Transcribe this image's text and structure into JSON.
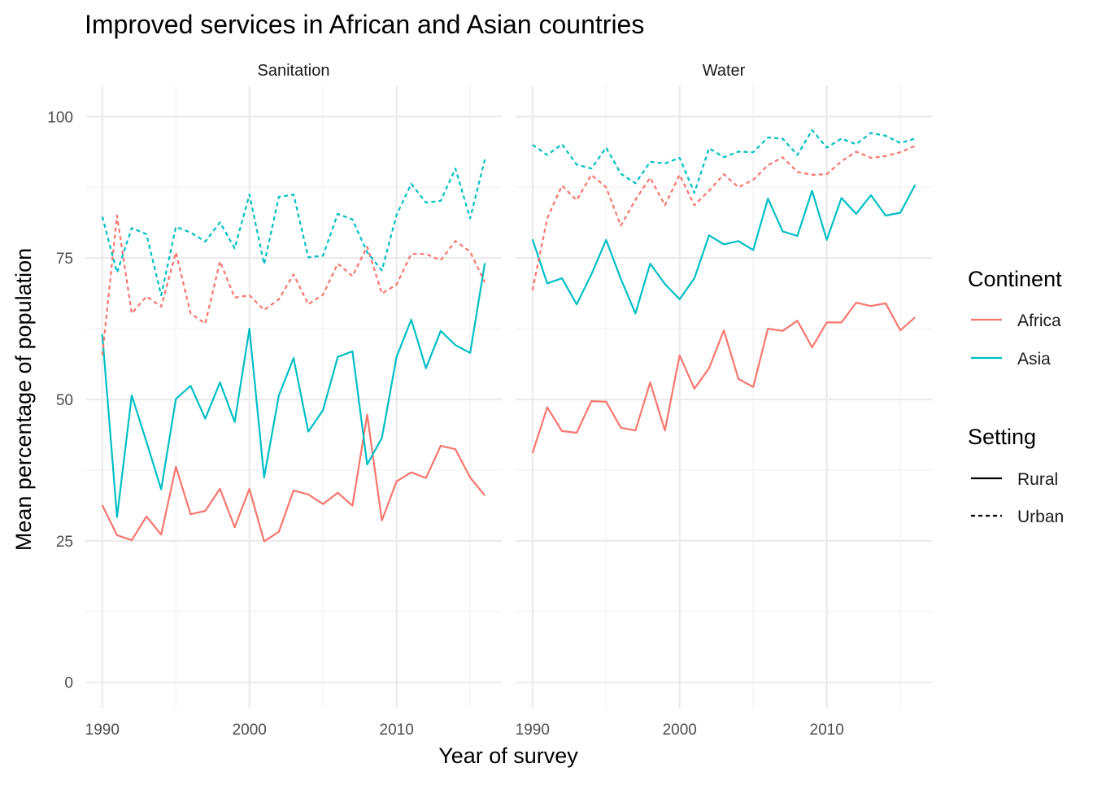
{
  "chart_data": {
    "type": "line",
    "title": "Improved services in African and Asian countries",
    "xlabel": "Year of survey",
    "ylabel": "Mean percentage of population",
    "xlim": [
      1988.85,
      2017.15
    ],
    "ylim": [
      -4.5,
      105.5
    ],
    "x_ticks": [
      1990,
      2000,
      2010
    ],
    "x_tick_labels": [
      "1990",
      "2000",
      "2010"
    ],
    "y_ticks": [
      0,
      25,
      50,
      75,
      100
    ],
    "y_tick_labels": [
      "0",
      "25",
      "50",
      "75",
      "100"
    ],
    "grid": true,
    "x": [
      1990,
      1991,
      1992,
      1993,
      1994,
      1995,
      1996,
      1997,
      1998,
      1999,
      2000,
      2001,
      2002,
      2003,
      2004,
      2005,
      2006,
      2007,
      2008,
      2009,
      2010,
      2011,
      2012,
      2013,
      2014,
      2015,
      2016
    ],
    "legends": [
      {
        "title": "Continent",
        "entries": [
          {
            "label": "Africa",
            "color": "#F8766D"
          },
          {
            "label": "Asia",
            "color": "#00BFC4"
          }
        ]
      },
      {
        "title": "Setting",
        "entries": [
          {
            "label": "Rural",
            "linetype": "solid"
          },
          {
            "label": "Urban",
            "linetype": "dashed"
          }
        ]
      }
    ],
    "legend_position": "right",
    "panels": [
      {
        "label": "Sanitation",
        "series": [
          {
            "continent": "Africa",
            "setting": "Rural",
            "color": "#F8766D",
            "values": [
              31.3,
              26.0,
              25.1,
              29.3,
              26.1,
              38.1,
              29.7,
              30.3,
              34.2,
              27.4,
              34.2,
              24.9,
              26.6,
              33.9,
              33.2,
              31.5,
              33.5,
              31.2,
              47.3,
              28.6,
              35.5,
              37.1,
              36.1,
              41.8,
              41.2,
              36.2,
              33.0
            ]
          },
          {
            "continent": "Asia",
            "setting": "Rural",
            "color": "#00BFC4",
            "values": [
              61.5,
              29.2,
              50.7,
              42.5,
              34.1,
              50.1,
              52.4,
              46.6,
              53.0,
              46.0,
              62.5,
              36.2,
              50.7,
              57.3,
              44.3,
              48.1,
              57.5,
              58.5,
              38.5,
              43.2,
              57.5,
              64.1,
              55.5,
              62.1,
              59.6,
              58.2,
              74.1
            ]
          },
          {
            "continent": "Africa",
            "setting": "Urban",
            "color": "#F8766D",
            "values": [
              57.8,
              82.5,
              65.2,
              68.2,
              66.4,
              76.0,
              65.2,
              63.4,
              74.4,
              68.0,
              68.4,
              65.8,
              67.7,
              72.1,
              66.8,
              68.5,
              74.0,
              71.8,
              77.0,
              68.7,
              70.3,
              75.7,
              75.7,
              74.6,
              78.0,
              76.1,
              70.7
            ]
          },
          {
            "continent": "Asia",
            "setting": "Urban",
            "color": "#00BFC4",
            "values": [
              82.3,
              72.4,
              80.3,
              79.2,
              68.4,
              80.5,
              79.5,
              77.9,
              81.3,
              76.7,
              86.2,
              73.9,
              85.8,
              86.2,
              75.1,
              75.4,
              82.8,
              81.8,
              76.0,
              72.8,
              82.6,
              88.1,
              84.8,
              85.1,
              90.8,
              82.0,
              92.4
            ]
          }
        ]
      },
      {
        "label": "Water",
        "series": [
          {
            "continent": "Africa",
            "setting": "Rural",
            "color": "#F8766D",
            "values": [
              40.5,
              48.6,
              44.4,
              44.1,
              49.7,
              49.6,
              45.0,
              44.5,
              53.0,
              44.5,
              57.8,
              51.9,
              55.5,
              62.2,
              53.6,
              52.2,
              62.5,
              62.1,
              63.9,
              59.2,
              63.6,
              63.6,
              67.1,
              66.5,
              67.0,
              62.2,
              64.5
            ]
          },
          {
            "continent": "Asia",
            "setting": "Rural",
            "color": "#00BFC4",
            "values": [
              78.3,
              70.5,
              71.4,
              66.8,
              72.1,
              78.2,
              71.3,
              65.2,
              74.0,
              70.4,
              67.7,
              71.4,
              79.0,
              77.4,
              78.0,
              76.4,
              85.5,
              79.7,
              78.9,
              86.9,
              78.2,
              85.6,
              82.8,
              86.1,
              82.5,
              83.0,
              87.9
            ]
          },
          {
            "continent": "Africa",
            "setting": "Urban",
            "color": "#F8766D",
            "values": [
              69.3,
              82.0,
              87.8,
              85.2,
              89.7,
              87.5,
              80.7,
              85.3,
              89.2,
              84.3,
              89.7,
              84.3,
              86.9,
              89.8,
              87.5,
              88.8,
              91.4,
              92.8,
              90.2,
              89.7,
              89.8,
              92.1,
              93.8,
              92.7,
              93.0,
              93.7,
              94.8
            ]
          },
          {
            "continent": "Asia",
            "setting": "Urban",
            "color": "#00BFC4",
            "values": [
              95.0,
              93.2,
              95.1,
              91.5,
              90.8,
              94.5,
              89.9,
              88.2,
              92.0,
              91.7,
              92.7,
              86.5,
              94.4,
              92.8,
              93.8,
              93.7,
              96.3,
              96.1,
              93.2,
              97.6,
              94.5,
              96.1,
              95.1,
              97.1,
              96.6,
              95.3,
              96.1
            ]
          }
        ]
      }
    ]
  }
}
